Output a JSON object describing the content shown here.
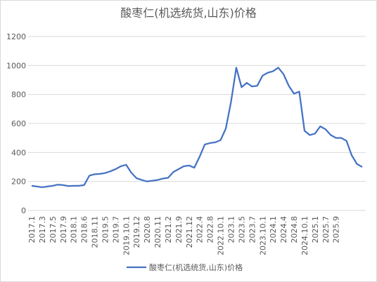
{
  "chart_data": {
    "type": "line",
    "title": "酸枣仁(机选统货,山东)价格",
    "categories": [
      "2017.1",
      null,
      "2017.3",
      null,
      "2017.5",
      null,
      "2017.9",
      null,
      "2018.1",
      null,
      "2018.6",
      null,
      "2018.11",
      null,
      "2019.5",
      null,
      "2019.7",
      null,
      "2019.10.1",
      null,
      "2019.12",
      null,
      "2020.8",
      null,
      "2020.11",
      null,
      "2021.2",
      null,
      "2021.9",
      null,
      "2021.12",
      null,
      "2022.4",
      null,
      "2022.8",
      null,
      "2022.10.1",
      null,
      "2023.1",
      null,
      "2023.5",
      null,
      "2023.7",
      null,
      "2023.10.1",
      null,
      "2024.1",
      null,
      "2024.4",
      null,
      "2024.8",
      null,
      "2024.10.1",
      null,
      "2025.1",
      null,
      "2025.7",
      null,
      "2025.9",
      null,
      null,
      null,
      null,
      null
    ],
    "series": [
      {
        "name": "酸枣仁(机选统货,山东)价格",
        "color": "#4472c4",
        "values": [
          170,
          165,
          160,
          165,
          170,
          178,
          175,
          168,
          170,
          170,
          175,
          240,
          250,
          252,
          258,
          270,
          285,
          305,
          315,
          260,
          222,
          210,
          200,
          205,
          210,
          220,
          225,
          265,
          285,
          305,
          310,
          295,
          370,
          455,
          465,
          470,
          485,
          565,
          750,
          985,
          850,
          880,
          855,
          860,
          930,
          950,
          960,
          985,
          940,
          860,
          805,
          820,
          550,
          520,
          530,
          580,
          560,
          520,
          500,
          500,
          480,
          380,
          320,
          300
        ]
      }
    ],
    "ylim": [
      0,
      1200
    ],
    "yticks": [
      0,
      200,
      400,
      600,
      800,
      1000,
      1200
    ],
    "grid": true,
    "legend": "bottom"
  }
}
